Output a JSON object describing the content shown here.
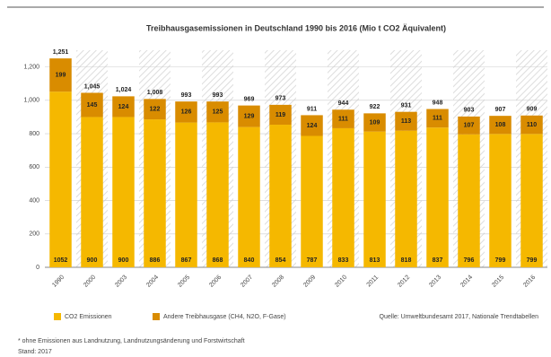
{
  "chart_data": {
    "type": "stacked_bar",
    "title": "Treibhausgasemissionen in Deutschland 1990 bis 2016 (Mio t CO2 Äquivalent)",
    "categories": [
      "1990",
      "2000",
      "2003",
      "2004",
      "2005",
      "2006",
      "2007",
      "2008",
      "2009",
      "2010",
      "2011",
      "2012",
      "2013",
      "2014",
      "2015",
      "2016"
    ],
    "series": [
      {
        "name": "CO2 Emissionen",
        "color": "#f5b800",
        "values": [
          1052,
          900,
          900,
          886,
          867,
          868,
          840,
          854,
          787,
          833,
          813,
          818,
          837,
          796,
          799,
          799
        ]
      },
      {
        "name": "Andere Treibhausgase (CH4, N2O, F-Gase)",
        "color": "#d98c00",
        "values": [
          199,
          145,
          124,
          122,
          126,
          125,
          129,
          119,
          124,
          111,
          109,
          113,
          111,
          107,
          108,
          110
        ]
      }
    ],
    "totals": [
      1251,
      1045,
      1024,
      1008,
      993,
      993,
      969,
      973,
      911,
      944,
      922,
      931,
      948,
      903,
      907,
      909
    ],
    "total_labels": [
      "1,251",
      "1,045",
      "1,024",
      "1,008",
      "993",
      "993",
      "969",
      "973",
      "911",
      "944",
      "922",
      "931",
      "948",
      "903",
      "907",
      "909"
    ],
    "ylim": [
      0,
      1300
    ],
    "yticks": [
      0,
      200,
      400,
      600,
      800,
      {
        "value": 1000,
        "label": "1,000"
      },
      {
        "value": 1200,
        "label": "1,200"
      }
    ],
    "grid": true,
    "source": "Quelle: Umweltbundesamt 2017, Nationale Trendtabellen",
    "footnote": "* ohne Emissionen aus Landnutzung, Landnutzungsänderung und Forstwirtschaft",
    "note": "Stand: 2017"
  }
}
